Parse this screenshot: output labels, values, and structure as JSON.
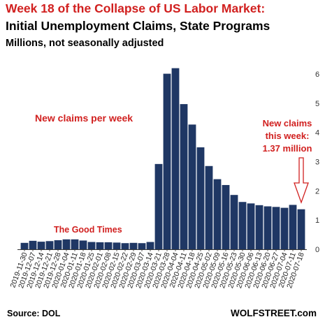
{
  "title": "Week 18 of the Collapse of US Labor Market:",
  "subtitle": "Initial Unemployment Claims, State Programs",
  "units": "Millions, not seasonally adjusted",
  "source": "Source: DOL",
  "credit": "WOLFSTREET.com",
  "colors": {
    "bar": "#1f3764",
    "title": "#d1201f",
    "annotation": "#d1201f",
    "axis": "#333333"
  },
  "chart_data": {
    "type": "bar",
    "categories": [
      "2019-11-30",
      "2019-12-07",
      "2019-12-14",
      "2019-12-21",
      "2019-12-28",
      "2020-01-04",
      "2020-01-11",
      "2020-01-18",
      "2020-01-25",
      "2020-02-01",
      "2020-02-08",
      "2020-02-15",
      "2020-02-22",
      "2020-02-29",
      "2020-03-07",
      "2020-03-14",
      "2020-03-21",
      "2020-03-28",
      "2020-04-04",
      "2020-04-11",
      "2020-04-18",
      "2020-04-25",
      "2020-05-02",
      "2020-05-09",
      "2020-05-16",
      "2020-05-23",
      "2020-05-30",
      "2020-06-06",
      "2020-06-13",
      "2020-06-20",
      "2020-06-27",
      "2020-07-04",
      "2020-07-11",
      "2020-07-18"
    ],
    "x_tick_labels": [
      "2019-11-30",
      "2019-12-14",
      "2019-12-28",
      "2020-01-11",
      "2020-01-25",
      "2020-02-08",
      "2020-02-22",
      "2020-03-07",
      "2020-03-21",
      "2020-04-04",
      "2020-04-18",
      "2020-05-02",
      "2020-05-16",
      "2020-05-30",
      "2020-06-13",
      "2020-06-27",
      "2020-07-11"
    ],
    "x_tick_labels_axis2": [
      "2019-12-07",
      "2019-12-21",
      "2020-01-04",
      "2020-01-18",
      "2020-02-01",
      "2020-02-15",
      "2020-02-29",
      "2020-03-14",
      "2020-03-28",
      "2020-04-11",
      "2020-04-25",
      "2020-05-09",
      "2020-05-23",
      "2020-06-06",
      "2020-06-20",
      "2020-07-04",
      "2020-07-18"
    ],
    "values": [
      0.22,
      0.29,
      0.26,
      0.28,
      0.31,
      0.34,
      0.34,
      0.3,
      0.25,
      0.24,
      0.24,
      0.23,
      0.21,
      0.22,
      0.21,
      0.25,
      2.92,
      6.01,
      6.2,
      4.97,
      4.27,
      3.49,
      2.85,
      2.4,
      2.2,
      1.86,
      1.62,
      1.57,
      1.51,
      1.47,
      1.45,
      1.42,
      1.52,
      1.37
    ],
    "ylim": [
      0,
      6.2
    ],
    "yticks": [
      "0",
      "1",
      "2",
      "3",
      "4",
      "5",
      "6"
    ],
    "annotations": {
      "new_claims": "New claims per week",
      "good_times": "The Good Times",
      "this_week_line1": "New claims",
      "this_week_line2": "this week:",
      "this_week_line3": "1.37 million"
    }
  }
}
